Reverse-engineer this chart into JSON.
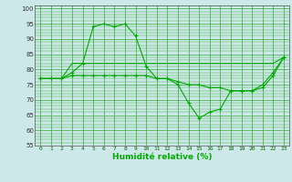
{
  "xlabel": "Humidité relative (%)",
  "bg_color": "#cce8e8",
  "grid_color": "#33aa33",
  "line_color": "#00aa00",
  "xlim": [
    -0.5,
    23.5
  ],
  "ylim": [
    55,
    101
  ],
  "yticks": [
    55,
    60,
    65,
    70,
    75,
    80,
    85,
    90,
    95,
    100
  ],
  "xticks": [
    0,
    1,
    2,
    3,
    4,
    5,
    6,
    7,
    8,
    9,
    10,
    11,
    12,
    13,
    14,
    15,
    16,
    17,
    18,
    19,
    20,
    21,
    22,
    23
  ],
  "line1": [
    77,
    77,
    77,
    79,
    82,
    94,
    95,
    94,
    95,
    91,
    81,
    77,
    77,
    75,
    69,
    64,
    66,
    67,
    73,
    73,
    73,
    75,
    79,
    84
  ],
  "line2": [
    77,
    77,
    77,
    82,
    82,
    82,
    82,
    82,
    82,
    82,
    82,
    82,
    82,
    82,
    82,
    82,
    82,
    82,
    82,
    82,
    82,
    82,
    82,
    84
  ],
  "line3": [
    77,
    77,
    77,
    78,
    78,
    78,
    78,
    78,
    78,
    78,
    78,
    77,
    77,
    76,
    75,
    75,
    74,
    74,
    73,
    73,
    73,
    74,
    78,
    84
  ]
}
